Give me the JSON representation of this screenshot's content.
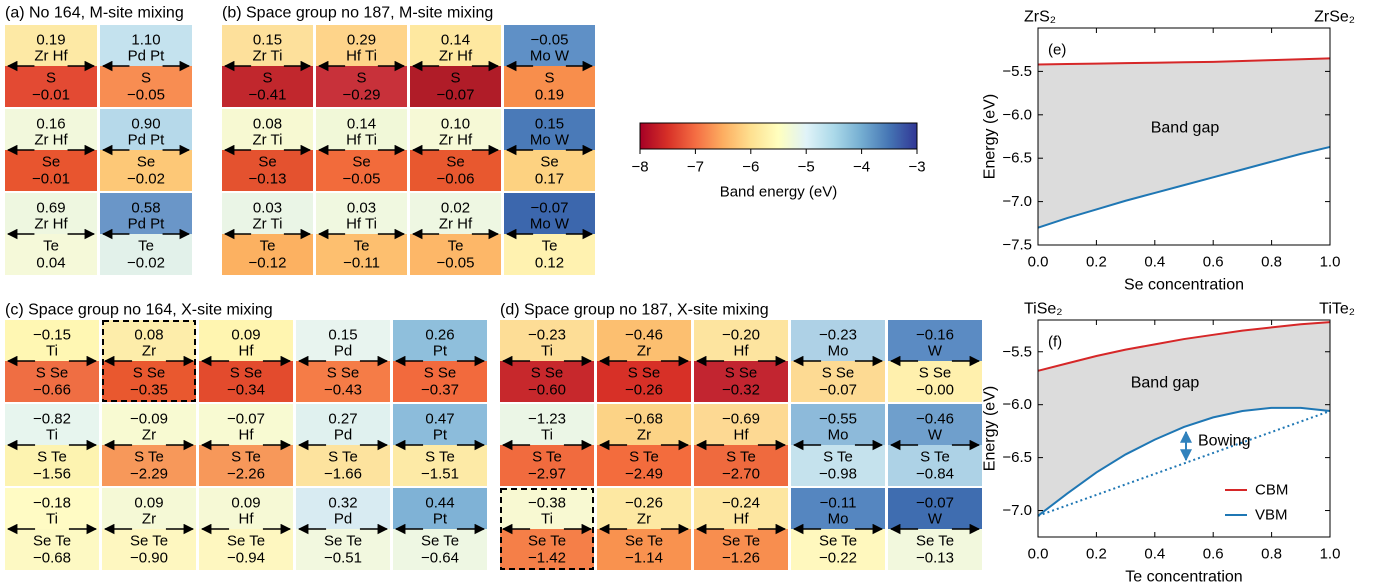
{
  "panels": [
    {
      "title": "(a) No 164, M-site mixing",
      "rows": [
        [
          {
            "top_value": "0.19",
            "top": "Zr Hf",
            "bottom": "S",
            "bottom_value": "−0.01",
            "colors": [
              "#fde9a5",
              "#e34a33"
            ]
          },
          {
            "top_value": "1.10",
            "top": "Pd Pt",
            "bottom": "S",
            "bottom_value": "−0.05",
            "colors": [
              "#c4e2ee",
              "#f88d52"
            ]
          }
        ],
        [
          {
            "top_value": "0.16",
            "top": "Zr Hf",
            "bottom": "Se",
            "bottom_value": "−0.01",
            "colors": [
              "#f2f8dc",
              "#e8552f"
            ]
          },
          {
            "top_value": "0.90",
            "top": "Pd Pt",
            "bottom": "Se",
            "bottom_value": "−0.02",
            "colors": [
              "#b6d9ea",
              "#fdc877"
            ]
          }
        ],
        [
          {
            "top_value": "0.69",
            "top": "Zr Hf",
            "bottom": "Te",
            "bottom_value": "0.04",
            "colors": [
              "#eef7e0",
              "#f5f9d9"
            ]
          },
          {
            "top_value": "0.58",
            "top": "Pd Pt",
            "bottom": "Te",
            "bottom_value": "−0.02",
            "colors": [
              "#6a96c8",
              "#e2f1ea"
            ]
          }
        ]
      ]
    },
    {
      "title": "(b) Space group no 187, M-site mixing",
      "rows": [
        [
          {
            "top_value": "0.15",
            "top": "Zr Ti",
            "bottom": "S",
            "bottom_value": "−0.41",
            "colors": [
              "#fde09b",
              "#c1272d"
            ]
          },
          {
            "top_value": "0.29",
            "top": "Hf Ti",
            "bottom": "S",
            "bottom_value": "−0.29",
            "colors": [
              "#fed48a",
              "#c8313a"
            ]
          },
          {
            "top_value": "0.14",
            "top": "Zr Hf",
            "bottom": "S",
            "bottom_value": "−0.07",
            "colors": [
              "#fee8a0",
              "#b01c28"
            ]
          },
          {
            "top_value": "−0.05",
            "top": "Mo W",
            "bottom": "S",
            "bottom_value": "0.19",
            "colors": [
              "#5f90c6",
              "#f88e4c"
            ]
          }
        ],
        [
          {
            "top_value": "0.08",
            "top": "Zr Ti",
            "bottom": "Se",
            "bottom_value": "−0.13",
            "colors": [
              "#f7f9d2",
              "#e4522f"
            ]
          },
          {
            "top_value": "0.14",
            "top": "Hf Ti",
            "bottom": "Se",
            "bottom_value": "−0.05",
            "colors": [
              "#f1f8d8",
              "#f26b3b"
            ]
          },
          {
            "top_value": "0.10",
            "top": "Zr Hf",
            "bottom": "Se",
            "bottom_value": "−0.06",
            "colors": [
              "#f6f9d6",
              "#e8582f"
            ]
          },
          {
            "top_value": "0.15",
            "top": "Mo W",
            "bottom": "Se",
            "bottom_value": "0.17",
            "colors": [
              "#4a7ab8",
              "#fdd281"
            ]
          }
        ],
        [
          {
            "top_value": "0.03",
            "top": "Zr Ti",
            "bottom": "Te",
            "bottom_value": "−0.12",
            "colors": [
              "#eaf5e6",
              "#fcb161"
            ]
          },
          {
            "top_value": "0.03",
            "top": "Hf Ti",
            "bottom": "Te",
            "bottom_value": "−0.11",
            "colors": [
              "#f0f8e0",
              "#fdbf6f"
            ]
          },
          {
            "top_value": "0.02",
            "top": "Zr Hf",
            "bottom": "Te",
            "bottom_value": "−0.05",
            "colors": [
              "#eef7e2",
              "#fdb768"
            ]
          },
          {
            "top_value": "−0.07",
            "top": "Mo W",
            "bottom": "Te",
            "bottom_value": "0.12",
            "colors": [
              "#3c67ad",
              "#fff2b0"
            ]
          }
        ]
      ]
    },
    {
      "title": "(c) Space group no 164, X-site mixing",
      "rows": [
        [
          {
            "top_value": "−0.15",
            "top": "Ti",
            "bottom": "S Se",
            "bottom_value": "−0.66",
            "colors": [
              "#fff7b3",
              "#ef6e43"
            ]
          },
          {
            "top_value": "0.08",
            "top": "Zr",
            "bottom": "S Se",
            "bottom_value": "−0.35",
            "colors": [
              "#fdedaa",
              "#e9582f"
            ],
            "dashed": true
          },
          {
            "top_value": "0.09",
            "top": "Hf",
            "bottom": "S Se",
            "bottom_value": "−0.34",
            "colors": [
              "#fff5b0",
              "#e34b2d"
            ]
          },
          {
            "top_value": "0.15",
            "top": "Pd",
            "bottom": "S Se",
            "bottom_value": "−0.43",
            "colors": [
              "#e8f4ef",
              "#f57c47"
            ]
          },
          {
            "top_value": "0.26",
            "top": "Pt",
            "bottom": "S Se",
            "bottom_value": "−0.37",
            "colors": [
              "#8fbfdc",
              "#f26a3d"
            ]
          }
        ],
        [
          {
            "top_value": "−0.82",
            "top": "Ti",
            "bottom": "S Te",
            "bottom_value": "−1.56",
            "colors": [
              "#e7f5ee",
              "#fdf3b0"
            ]
          },
          {
            "top_value": "−0.09",
            "top": "Zr",
            "bottom": "S Te",
            "bottom_value": "−2.29",
            "colors": [
              "#f8fad2",
              "#f7985a"
            ]
          },
          {
            "top_value": "−0.07",
            "top": "Hf",
            "bottom": "S Te",
            "bottom_value": "−2.26",
            "colors": [
              "#f8fad2",
              "#f7985a"
            ]
          },
          {
            "top_value": "0.27",
            "top": "Pd",
            "bottom": "S Te",
            "bottom_value": "−1.66",
            "colors": [
              "#e0f1ef",
              "#fde39e"
            ]
          },
          {
            "top_value": "0.47",
            "top": "Pt",
            "bottom": "S Te",
            "bottom_value": "−1.51",
            "colors": [
              "#8cbcdb",
              "#fdeaa6"
            ]
          }
        ],
        [
          {
            "top_value": "−0.18",
            "top": "Ti",
            "bottom": "Se Te",
            "bottom_value": "−0.68",
            "colors": [
              "#fffbc4",
              "#fdf9c3"
            ]
          },
          {
            "top_value": "0.09",
            "top": "Zr",
            "bottom": "Se Te",
            "bottom_value": "−0.90",
            "colors": [
              "#f5f9d6",
              "#fef7c0"
            ]
          },
          {
            "top_value": "0.09",
            "top": "Hf",
            "bottom": "Se Te",
            "bottom_value": "−0.94",
            "colors": [
              "#f6f9d5",
              "#fef7c0"
            ]
          },
          {
            "top_value": "0.32",
            "top": "Pd",
            "bottom": "Se Te",
            "bottom_value": "−0.51",
            "colors": [
              "#d8ebf2",
              "#f2f8df"
            ]
          },
          {
            "top_value": "0.44",
            "top": "Pt",
            "bottom": "Se Te",
            "bottom_value": "−0.64",
            "colors": [
              "#7fb2d6",
              "#eef7e3"
            ]
          }
        ]
      ]
    },
    {
      "title": "(d) Space group no 187, X-site mixing",
      "rows": [
        [
          {
            "top_value": "−0.23",
            "top": "Ti",
            "bottom": "S Se",
            "bottom_value": "−0.60",
            "colors": [
              "#fddd96",
              "#c7282c"
            ]
          },
          {
            "top_value": "−0.46",
            "top": "Zr",
            "bottom": "S Se",
            "bottom_value": "−0.26",
            "colors": [
              "#fcbf70",
              "#d73027"
            ]
          },
          {
            "top_value": "−0.20",
            "top": "Hf",
            "bottom": "S Se",
            "bottom_value": "−0.32",
            "colors": [
              "#fde49f",
              "#c22530"
            ]
          },
          {
            "top_value": "−0.23",
            "top": "Mo",
            "bottom": "S Se",
            "bottom_value": "−0.07",
            "colors": [
              "#aed1e6",
              "#fdda93"
            ]
          },
          {
            "top_value": "−0.16",
            "top": "W",
            "bottom": "S Se",
            "bottom_value": "−0.00",
            "colors": [
              "#5b8bc3",
              "#fff0ad"
            ]
          }
        ],
        [
          {
            "top_value": "−1.23",
            "top": "Ti",
            "bottom": "S Te",
            "bottom_value": "−2.97",
            "colors": [
              "#ebf6e6",
              "#f16b3e"
            ]
          },
          {
            "top_value": "−0.68",
            "top": "Zr",
            "bottom": "S Te",
            "bottom_value": "−2.49",
            "colors": [
              "#fcd386",
              "#f36c3d"
            ]
          },
          {
            "top_value": "−0.69",
            "top": "Hf",
            "bottom": "S Te",
            "bottom_value": "−2.70",
            "colors": [
              "#fdd993",
              "#ef6a3e"
            ]
          },
          {
            "top_value": "−0.55",
            "top": "Mo",
            "bottom": "S Te",
            "bottom_value": "−0.98",
            "colors": [
              "#8dbada",
              "#c5e2ed"
            ]
          },
          {
            "top_value": "−0.46",
            "top": "W",
            "bottom": "S Te",
            "bottom_value": "−0.84",
            "colors": [
              "#6f9fcc",
              "#add2e6"
            ]
          }
        ],
        [
          {
            "top_value": "−0.38",
            "top": "Ti",
            "bottom": "Se Te",
            "bottom_value": "−1.42",
            "colors": [
              "#f8f9d2",
              "#f57f48"
            ],
            "dashed": true
          },
          {
            "top_value": "−0.26",
            "top": "Zr",
            "bottom": "Se Te",
            "bottom_value": "−1.14",
            "colors": [
              "#fde8a2",
              "#f9924f"
            ]
          },
          {
            "top_value": "−0.24",
            "top": "Hf",
            "bottom": "Se Te",
            "bottom_value": "−1.26",
            "colors": [
              "#fde6a0",
              "#f88e4f"
            ]
          },
          {
            "top_value": "−0.11",
            "top": "Mo",
            "bottom": "Se Te",
            "bottom_value": "−0.22",
            "colors": [
              "#5586c0",
              "#fff8be"
            ]
          },
          {
            "top_value": "−0.07",
            "top": "W",
            "bottom": "Se Te",
            "bottom_value": "−0.13",
            "colors": [
              "#3f6db0",
              "#f2f8dd"
            ]
          }
        ]
      ]
    }
  ],
  "colorbar": {
    "label": "Band energy (eV)",
    "min": -8,
    "max": -3,
    "colors": [
      "#a50026",
      "#d73027",
      "#f46d43",
      "#fdae61",
      "#fee090",
      "#ffffbf",
      "#e0f3f8",
      "#abd9e9",
      "#74add1",
      "#4575b4",
      "#313695"
    ],
    "ticks": [
      {
        "value": -8,
        "label": "−8"
      },
      {
        "value": -7,
        "label": "−7"
      },
      {
        "value": -6,
        "label": "−6"
      },
      {
        "value": -5,
        "label": "−5"
      },
      {
        "value": -4,
        "label": "−4"
      },
      {
        "value": -3,
        "label": "−3"
      }
    ]
  },
  "chart_data": [
    {
      "type": "line",
      "panel_label": "(e)",
      "left_label": "ZrS₂",
      "right_label": "ZrSe₂",
      "xlabel": "Se concentration",
      "ylabel": "Energy (eV)",
      "x": [
        0,
        0.1,
        0.2,
        0.3,
        0.4,
        0.5,
        0.6,
        0.7,
        0.8,
        0.9,
        1.0
      ],
      "series": [
        {
          "name": "CBM",
          "color": "#d62728",
          "values": [
            -5.42,
            -5.415,
            -5.41,
            -5.405,
            -5.4,
            -5.395,
            -5.39,
            -5.38,
            -5.37,
            -5.36,
            -5.35
          ]
        },
        {
          "name": "VBM",
          "color": "#1f77b4",
          "values": [
            -7.3,
            -7.19,
            -7.09,
            -6.99,
            -6.9,
            -6.81,
            -6.72,
            -6.63,
            -6.54,
            -6.45,
            -6.37
          ]
        }
      ],
      "fill_between": true,
      "fill_color": "#dcdcdc",
      "annotations": [
        {
          "text": "Band gap",
          "color": "#000000"
        }
      ],
      "xlim": [
        0,
        1
      ],
      "ylim": [
        -7.5,
        -5.0
      ],
      "xticks": [
        {
          "value": 0,
          "label": "0.0"
        },
        {
          "value": 0.2,
          "label": "0.2"
        },
        {
          "value": 0.4,
          "label": "0.4"
        },
        {
          "value": 0.6,
          "label": "0.6"
        },
        {
          "value": 0.8,
          "label": "0.8"
        },
        {
          "value": 1,
          "label": "1.0"
        }
      ],
      "yticks": [
        {
          "value": -5.5,
          "label": "−5.5"
        },
        {
          "value": -6,
          "label": "−6.0"
        },
        {
          "value": -6.5,
          "label": "−6.5"
        },
        {
          "value": -7,
          "label": "−7.0"
        },
        {
          "value": -7.5,
          "label": "−7.5"
        }
      ]
    },
    {
      "type": "line",
      "panel_label": "(f)",
      "left_label": "TiSe₂",
      "right_label": "TiTe₂",
      "xlabel": "Te concentration",
      "ylabel": "Energy (eV)",
      "x": [
        0,
        0.1,
        0.2,
        0.3,
        0.4,
        0.5,
        0.6,
        0.7,
        0.8,
        0.9,
        1.0
      ],
      "series": [
        {
          "name": "CBM",
          "color": "#d62728",
          "values": [
            -5.68,
            -5.61,
            -5.54,
            -5.48,
            -5.43,
            -5.38,
            -5.34,
            -5.3,
            -5.27,
            -5.24,
            -5.22
          ]
        },
        {
          "name": "VBM",
          "color": "#1f77b4",
          "values": [
            -7.05,
            -6.84,
            -6.64,
            -6.47,
            -6.33,
            -6.21,
            -6.12,
            -6.06,
            -6.03,
            -6.03,
            -6.06
          ]
        }
      ],
      "reference": {
        "x": [
          0,
          1
        ],
        "values": [
          -7.05,
          -6.06
        ],
        "color": "#1f77b4",
        "style": "dotted"
      },
      "fill_between": true,
      "fill_color": "#dcdcdc",
      "annotations": [
        {
          "text": "Band gap",
          "color": "#000000"
        },
        {
          "text": "Bowing",
          "color": "#3182bd",
          "arrow": true
        }
      ],
      "legend": "lower right",
      "xlim": [
        0,
        1
      ],
      "ylim": [
        -7.25,
        -5.2
      ],
      "xticks": [
        {
          "value": 0,
          "label": "0.0"
        },
        {
          "value": 0.2,
          "label": "0.2"
        },
        {
          "value": 0.4,
          "label": "0.4"
        },
        {
          "value": 0.6,
          "label": "0.6"
        },
        {
          "value": 0.8,
          "label": "0.8"
        },
        {
          "value": 1,
          "label": "1.0"
        }
      ],
      "yticks": [
        {
          "value": -5.5,
          "label": "−5.5"
        },
        {
          "value": -6,
          "label": "−6.0"
        },
        {
          "value": -6.5,
          "label": "−6.5"
        },
        {
          "value": -7,
          "label": "−7.0"
        }
      ]
    }
  ]
}
